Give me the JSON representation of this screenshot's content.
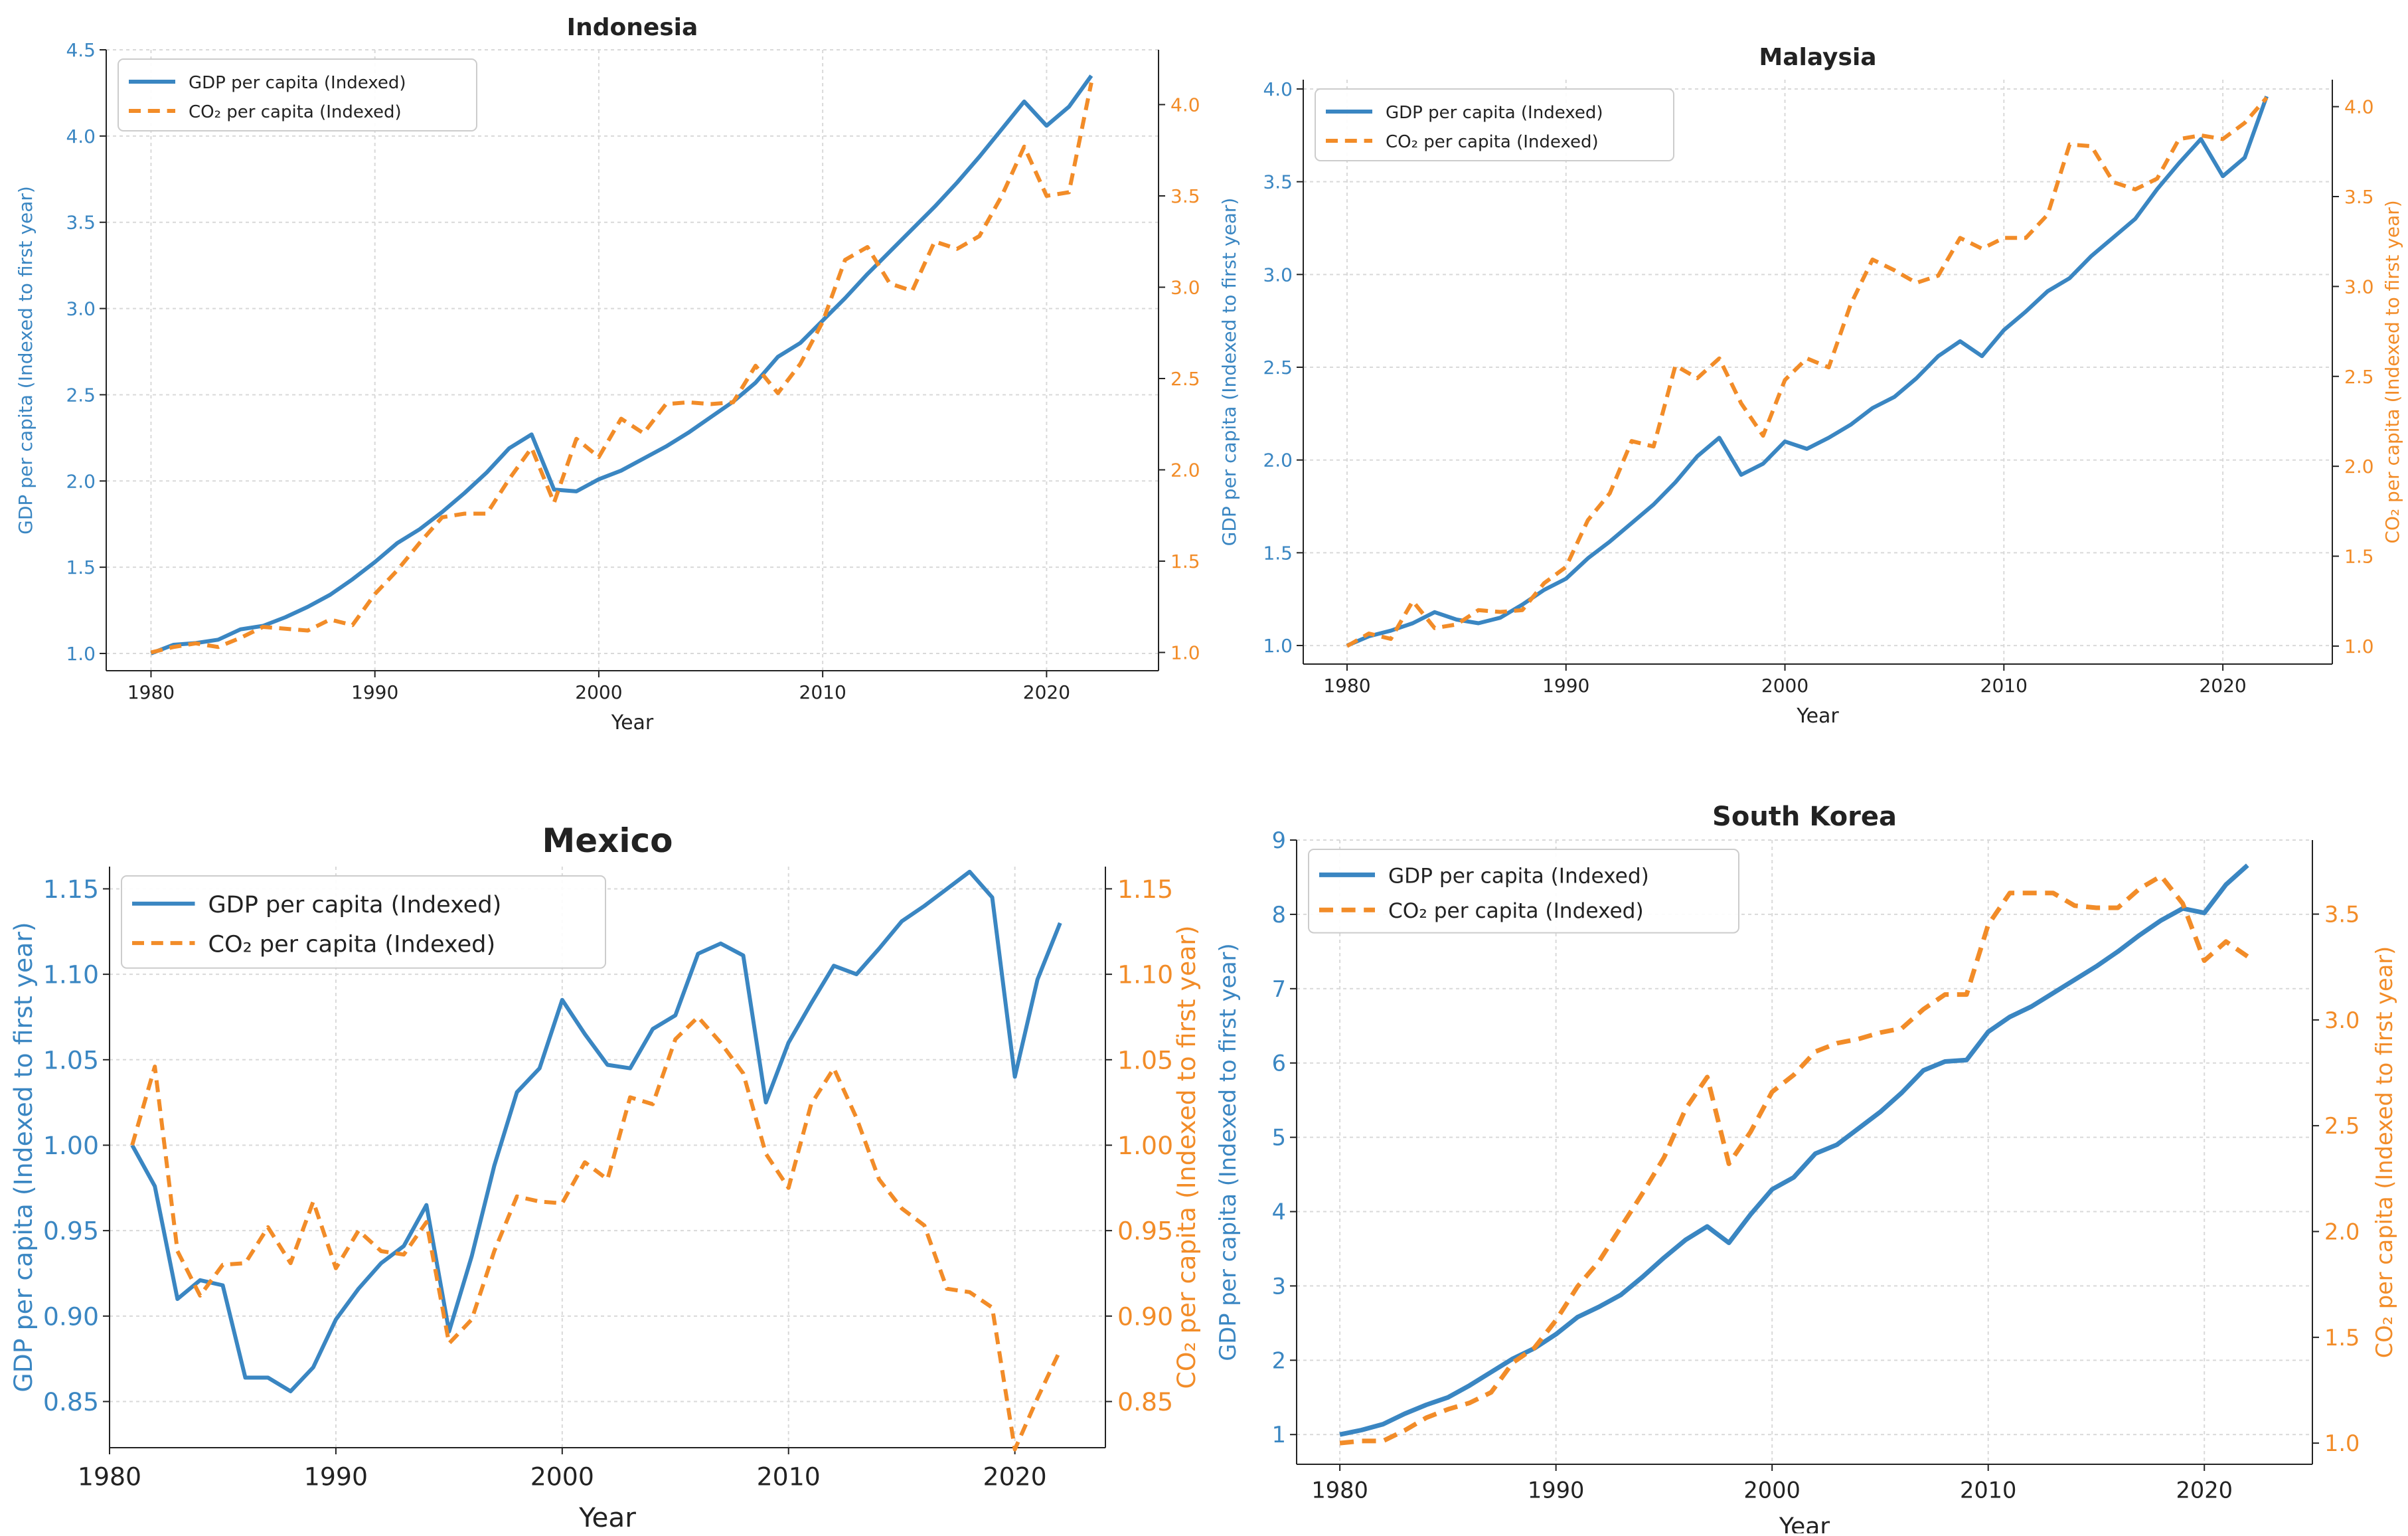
{
  "colors": {
    "gdp": "#3a86c2",
    "co2": "#f28c28",
    "axis": "#222222",
    "grid": "#d9d9d9"
  },
  "chart_data": [
    {
      "type": "line",
      "title": "Indonesia",
      "xlabel": "Year",
      "ylabel_left": "GDP per capita (Indexed to first year)",
      "ylabel_right": "CO₂ per capita (Indexed to first year)",
      "xlim": [
        1978,
        2025
      ],
      "ylim_left": [
        0.9,
        4.5
      ],
      "ylim_right": [
        0.9,
        4.3
      ],
      "xticks": [
        1980,
        1990,
        2000,
        2010,
        2020
      ],
      "yticks_left": [
        1.0,
        1.5,
        2.0,
        2.5,
        3.0,
        3.5,
        4.0,
        4.5
      ],
      "yticks_right": [
        1.0,
        1.5,
        2.0,
        2.5,
        3.0,
        3.5,
        4.0
      ],
      "legend_position": "top-left",
      "grid": true,
      "series": [
        {
          "name": "GDP per capita (Indexed)",
          "axis": "left",
          "style": "solid",
          "x": [
            1980,
            1981,
            1982,
            1983,
            1984,
            1985,
            1986,
            1987,
            1988,
            1989,
            1990,
            1991,
            1992,
            1993,
            1994,
            1995,
            1996,
            1997,
            1998,
            1999,
            2000,
            2001,
            2002,
            2003,
            2004,
            2005,
            2006,
            2007,
            2008,
            2009,
            2010,
            2011,
            2012,
            2013,
            2014,
            2015,
            2016,
            2017,
            2018,
            2019,
            2020,
            2021,
            2022
          ],
          "values": [
            1.0,
            1.05,
            1.06,
            1.08,
            1.14,
            1.16,
            1.21,
            1.27,
            1.34,
            1.43,
            1.53,
            1.64,
            1.72,
            1.82,
            1.93,
            2.05,
            2.19,
            2.27,
            1.95,
            1.94,
            2.01,
            2.06,
            2.13,
            2.2,
            2.28,
            2.37,
            2.46,
            2.57,
            2.72,
            2.8,
            2.93,
            3.06,
            3.2,
            3.33,
            3.46,
            3.59,
            3.73,
            3.88,
            4.04,
            4.2,
            4.06,
            4.17,
            4.35
          ]
        },
        {
          "name": "CO₂ per capita (Indexed)",
          "axis": "right",
          "style": "dashed",
          "x": [
            1980,
            1981,
            1982,
            1983,
            1984,
            1985,
            1986,
            1987,
            1988,
            1989,
            1990,
            1991,
            1992,
            1993,
            1994,
            1995,
            1996,
            1997,
            1998,
            1999,
            2000,
            2001,
            2002,
            2003,
            2004,
            2005,
            2006,
            2007,
            2008,
            2009,
            2010,
            2011,
            2012,
            2013,
            2014,
            2015,
            2016,
            2017,
            2018,
            2019,
            2020,
            2021,
            2022
          ],
          "values": [
            1.0,
            1.03,
            1.05,
            1.03,
            1.08,
            1.14,
            1.13,
            1.12,
            1.18,
            1.15,
            1.32,
            1.45,
            1.6,
            1.74,
            1.76,
            1.76,
            1.95,
            2.12,
            1.82,
            2.17,
            2.07,
            2.28,
            2.2,
            2.36,
            2.37,
            2.36,
            2.37,
            2.57,
            2.42,
            2.58,
            2.81,
            3.15,
            3.22,
            3.02,
            2.98,
            3.25,
            3.21,
            3.28,
            3.5,
            3.77,
            3.5,
            3.52,
            4.12
          ]
        }
      ]
    },
    {
      "type": "line",
      "title": "Malaysia",
      "xlabel": "Year",
      "ylabel_left": "GDP per capita (Indexed to first year)",
      "ylabel_right": "CO₂ per capita (Indexed to first year)",
      "xlim": [
        1978,
        2025
      ],
      "ylim_left": [
        0.9,
        4.05
      ],
      "ylim_right": [
        0.9,
        4.15
      ],
      "xticks": [
        1980,
        1990,
        2000,
        2010,
        2020
      ],
      "yticks_left": [
        1.0,
        1.5,
        2.0,
        2.5,
        3.0,
        3.5,
        4.0
      ],
      "yticks_right": [
        1.0,
        1.5,
        2.0,
        2.5,
        3.0,
        3.5,
        4.0
      ],
      "legend_position": "top-left",
      "grid": true,
      "series": [
        {
          "name": "GDP per capita (Indexed)",
          "axis": "left",
          "style": "solid",
          "x": [
            1980,
            1981,
            1982,
            1983,
            1984,
            1985,
            1986,
            1987,
            1988,
            1989,
            1990,
            1991,
            1992,
            1993,
            1994,
            1995,
            1996,
            1997,
            1998,
            1999,
            2000,
            2001,
            2002,
            2003,
            2004,
            2005,
            2006,
            2007,
            2008,
            2009,
            2010,
            2011,
            2012,
            2013,
            2014,
            2015,
            2016,
            2017,
            2018,
            2019,
            2020,
            2021,
            2022
          ],
          "values": [
            1.0,
            1.05,
            1.08,
            1.12,
            1.18,
            1.14,
            1.12,
            1.15,
            1.22,
            1.3,
            1.36,
            1.47,
            1.56,
            1.66,
            1.76,
            1.88,
            2.02,
            2.12,
            1.92,
            1.98,
            2.1,
            2.06,
            2.12,
            2.19,
            2.28,
            2.34,
            2.44,
            2.56,
            2.64,
            2.56,
            2.7,
            2.8,
            2.91,
            2.98,
            3.1,
            3.2,
            3.3,
            3.46,
            3.6,
            3.73,
            3.53,
            3.63,
            3.96
          ]
        },
        {
          "name": "CO₂ per capita (Indexed)",
          "axis": "right",
          "style": "dashed",
          "x": [
            1980,
            1981,
            1982,
            1983,
            1984,
            1985,
            1986,
            1987,
            1988,
            1989,
            1990,
            1991,
            1992,
            1993,
            1994,
            1995,
            1996,
            1997,
            1998,
            1999,
            2000,
            2001,
            2002,
            2003,
            2004,
            2005,
            2006,
            2007,
            2008,
            2009,
            2010,
            2011,
            2012,
            2013,
            2014,
            2015,
            2016,
            2017,
            2018,
            2019,
            2020,
            2021,
            2022
          ],
          "values": [
            1.0,
            1.07,
            1.04,
            1.25,
            1.1,
            1.12,
            1.2,
            1.19,
            1.2,
            1.35,
            1.44,
            1.7,
            1.85,
            2.14,
            2.11,
            2.56,
            2.49,
            2.6,
            2.35,
            2.17,
            2.48,
            2.6,
            2.55,
            2.9,
            3.15,
            3.09,
            3.02,
            3.06,
            3.27,
            3.21,
            3.27,
            3.27,
            3.4,
            3.79,
            3.78,
            3.58,
            3.54,
            3.6,
            3.82,
            3.84,
            3.82,
            3.91,
            4.05
          ]
        }
      ]
    },
    {
      "type": "line",
      "title": "Mexico",
      "xlabel": "Year",
      "ylabel_left": "GDP per capita (Indexed to first year)",
      "ylabel_right": "CO₂ per capita (Indexed to first year)",
      "xlim": [
        1980,
        2024
      ],
      "ylim_left": [
        0.823,
        1.163
      ],
      "ylim_right": [
        0.823,
        1.163
      ],
      "xticks": [
        1980,
        1990,
        2000,
        2010,
        2020
      ],
      "yticks_left": [
        0.85,
        0.9,
        0.95,
        1.0,
        1.05,
        1.1,
        1.15
      ],
      "yticks_right": [
        0.85,
        0.9,
        0.95,
        1.0,
        1.05,
        1.1,
        1.15
      ],
      "legend_position": "top-left",
      "grid": true,
      "series": [
        {
          "name": "GDP per capita (Indexed)",
          "axis": "left",
          "style": "solid",
          "x": [
            1981,
            1982,
            1983,
            1984,
            1985,
            1986,
            1987,
            1988,
            1989,
            1990,
            1991,
            1992,
            1993,
            1994,
            1995,
            1996,
            1997,
            1998,
            1999,
            2000,
            2001,
            2002,
            2003,
            2004,
            2005,
            2006,
            2007,
            2008,
            2009,
            2010,
            2011,
            2012,
            2013,
            2014,
            2015,
            2016,
            2017,
            2018,
            2019,
            2020,
            2021,
            2022
          ],
          "values": [
            1.0,
            0.976,
            0.91,
            0.921,
            0.918,
            0.864,
            0.864,
            0.856,
            0.87,
            0.898,
            0.916,
            0.931,
            0.941,
            0.965,
            0.891,
            0.935,
            0.988,
            1.031,
            1.045,
            1.085,
            1.065,
            1.047,
            1.045,
            1.068,
            1.076,
            1.112,
            1.118,
            1.111,
            1.025,
            1.06,
            1.083,
            1.105,
            1.1,
            1.115,
            1.131,
            1.14,
            1.15,
            1.16,
            1.145,
            1.04,
            1.097,
            1.13
          ]
        },
        {
          "name": "CO₂ per capita (Indexed)",
          "axis": "right",
          "style": "dashed",
          "x": [
            1981,
            1982,
            1983,
            1984,
            1985,
            1986,
            1987,
            1988,
            1989,
            1990,
            1991,
            1992,
            1993,
            1994,
            1995,
            1996,
            1997,
            1998,
            1999,
            2000,
            2001,
            2002,
            2003,
            2004,
            2005,
            2006,
            2007,
            2008,
            2009,
            2010,
            2011,
            2012,
            2013,
            2014,
            2015,
            2016,
            2017,
            2018,
            2019,
            2020,
            2021,
            2022
          ],
          "values": [
            1.0,
            1.046,
            0.938,
            0.912,
            0.93,
            0.931,
            0.952,
            0.931,
            0.967,
            0.928,
            0.95,
            0.938,
            0.936,
            0.955,
            0.884,
            0.898,
            0.938,
            0.97,
            0.967,
            0.966,
            0.99,
            0.98,
            1.028,
            1.024,
            1.062,
            1.075,
            1.06,
            1.042,
            0.995,
            0.975,
            1.024,
            1.045,
            1.016,
            0.98,
            0.963,
            0.953,
            0.916,
            0.914,
            0.905,
            0.822,
            0.852,
            0.88
          ]
        }
      ]
    },
    {
      "type": "line",
      "title": "South Korea",
      "xlabel": "Year",
      "ylabel_left": "GDP per capita (Indexed to first year)",
      "ylabel_right": "CO₂ per capita (Indexed to first year)",
      "xlim": [
        1978,
        2025
      ],
      "ylim_left": [
        0.6,
        9.0
      ],
      "ylim_right": [
        0.9,
        3.85
      ],
      "xticks": [
        1980,
        1990,
        2000,
        2010,
        2020
      ],
      "yticks_left": [
        1,
        2,
        3,
        4,
        5,
        6,
        7,
        8,
        9
      ],
      "yticks_right": [
        1.0,
        1.5,
        2.0,
        2.5,
        3.0,
        3.5
      ],
      "legend_position": "top-left",
      "grid": true,
      "series": [
        {
          "name": "GDP per capita (Indexed)",
          "axis": "left",
          "style": "solid",
          "x": [
            1980,
            1981,
            1982,
            1983,
            1984,
            1985,
            1986,
            1987,
            1988,
            1989,
            1990,
            1991,
            1992,
            1993,
            1994,
            1995,
            1996,
            1997,
            1998,
            1999,
            2000,
            2001,
            2002,
            2003,
            2004,
            2005,
            2006,
            2007,
            2008,
            2009,
            2010,
            2011,
            2012,
            2013,
            2014,
            2015,
            2016,
            2017,
            2018,
            2019,
            2020,
            2021,
            2022
          ],
          "values": [
            1.0,
            1.06,
            1.14,
            1.28,
            1.4,
            1.5,
            1.66,
            1.84,
            2.02,
            2.16,
            2.35,
            2.58,
            2.72,
            2.88,
            3.12,
            3.38,
            3.62,
            3.8,
            3.58,
            3.96,
            4.3,
            4.46,
            4.78,
            4.9,
            5.12,
            5.34,
            5.6,
            5.9,
            6.02,
            6.04,
            6.42,
            6.62,
            6.76,
            6.94,
            7.12,
            7.3,
            7.5,
            7.72,
            7.92,
            8.08,
            8.02,
            8.4,
            8.66
          ]
        },
        {
          "name": "CO₂ per capita (Indexed)",
          "axis": "right",
          "style": "dashed",
          "x": [
            1980,
            1981,
            1982,
            1983,
            1984,
            1985,
            1986,
            1987,
            1988,
            1989,
            1990,
            1991,
            1992,
            1993,
            1994,
            1995,
            1996,
            1997,
            1998,
            1999,
            2000,
            2001,
            2002,
            2003,
            2004,
            2005,
            2006,
            2007,
            2008,
            2009,
            2010,
            2011,
            2012,
            2013,
            2014,
            2015,
            2016,
            2017,
            2018,
            2019,
            2020,
            2021,
            2022
          ],
          "values": [
            1.0,
            1.01,
            1.01,
            1.06,
            1.12,
            1.16,
            1.19,
            1.24,
            1.38,
            1.45,
            1.58,
            1.74,
            1.86,
            2.02,
            2.18,
            2.35,
            2.58,
            2.73,
            2.32,
            2.47,
            2.66,
            2.74,
            2.85,
            2.89,
            2.91,
            2.94,
            2.96,
            3.05,
            3.12,
            3.12,
            3.45,
            3.6,
            3.6,
            3.6,
            3.54,
            3.53,
            3.53,
            3.62,
            3.68,
            3.55,
            3.28,
            3.37,
            3.3
          ]
        }
      ]
    }
  ]
}
